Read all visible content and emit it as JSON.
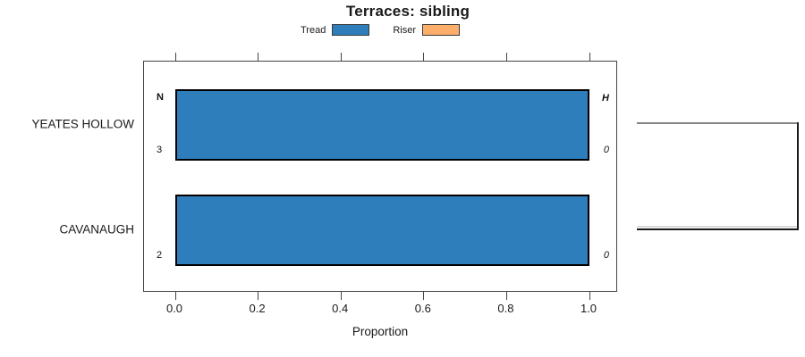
{
  "title": "Terraces: sibling",
  "legend": {
    "items": [
      {
        "label": "Tread",
        "color": "#2E7EBB"
      },
      {
        "label": "Riser",
        "color": "#FDAE6B"
      }
    ]
  },
  "colors": {
    "tread": "#2E7EBB",
    "riser": "#FDAE6B",
    "bar_border": "#000000",
    "axis": "#444444",
    "bracket_gray": "#848484",
    "bracket_dark": "#1A1A1A",
    "bracket_light": "#D9D9D9"
  },
  "chart_data": {
    "type": "bar",
    "orientation": "horizontal",
    "title": "Terraces: sibling",
    "xlabel": "Proportion",
    "xlim": [
      0,
      1
    ],
    "xticks": [
      "0.0",
      "0.2",
      "0.4",
      "0.6",
      "0.8",
      "1.0"
    ],
    "categories": [
      "YEATES HOLLOW",
      "CAVANAUGH"
    ],
    "series": [
      {
        "name": "Tread",
        "color": "#2E7EBB",
        "values": [
          1.0,
          1.0
        ]
      },
      {
        "name": "Riser",
        "color": "#FDAE6B",
        "values": [
          0.0,
          0.0
        ]
      }
    ],
    "row_annotations": {
      "left_header": "N",
      "right_header": "H",
      "left_values": [
        "3",
        "2"
      ],
      "right_values": [
        "0",
        "0"
      ]
    },
    "legend_position": "top",
    "grid": false,
    "right_bracket": true
  }
}
